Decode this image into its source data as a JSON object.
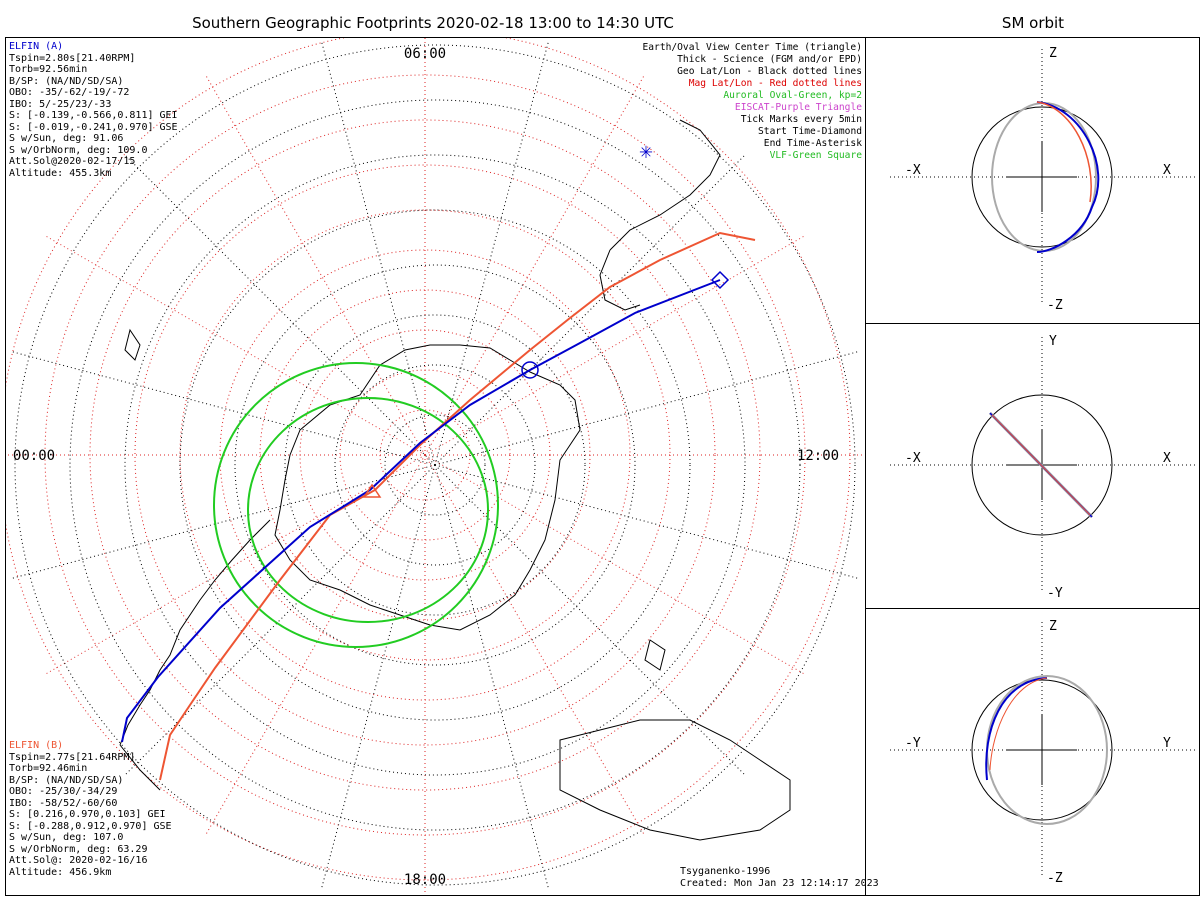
{
  "title": "Southern Geographic Footprints 2020-02-18 13:00 to 14:30 UTC",
  "side_title": "SM orbit",
  "mlt_labels": {
    "top": "06:00",
    "left": "00:00",
    "right": "12:00",
    "bottom": "18:00"
  },
  "elfin_a": {
    "name": "ELFIN (A)",
    "lines": [
      "Tspin=2.80s[21.40RPM]",
      "Torb=92.56min",
      "B/SP: (NA/ND/SD/SA)",
      "OBO: -35/-62/-19/-72",
      "IBO: 5/-25/23/-33",
      "S: [-0.139,-0.566,0.811] GEI",
      "S: [-0.019,-0.241,0.970] GSE",
      "S w/Sun, deg: 91.06",
      "S w/OrbNorm, deg: 109.0",
      "Att.Sol@2020-02-17/15",
      "Altitude: 455.3km"
    ],
    "color": "#0000cc"
  },
  "elfin_b": {
    "name": "ELFIN (B)",
    "lines": [
      "Tspin=2.77s[21.64RPM]",
      "Torb=92.46min",
      "B/SP: (NA/ND/SD/SA)",
      "OBO: -25/30/-34/29",
      "IBO: -58/52/-60/60",
      "S: [0.216,0.970,0.103] GEI",
      "S: [-0.288,0.912,0.970] GSE",
      "S w/Sun, deg: 107.0",
      "S w/OrbNorm, deg: 63.29",
      "Att.Sol@: 2020-02-16/16",
      "Altitude: 456.9km"
    ],
    "color": "#ee5533"
  },
  "legend": [
    {
      "text": "Earth/Oval View Center Time (triangle)",
      "color": "#000000"
    },
    {
      "text": "Thick - Science (FGM and/or EPD)",
      "color": "#000000"
    },
    {
      "text": "Geo Lat/Lon - Black dotted lines",
      "color": "#000000"
    },
    {
      "text": "Mag Lat/Lon - Red dotted lines",
      "color": "#dd0000"
    },
    {
      "text": "Auroral Oval-Green, kp=2",
      "color": "#22bb22"
    },
    {
      "text": "EISCAT-Purple Triangle",
      "color": "#cc44cc"
    },
    {
      "text": "Tick Marks every 5min",
      "color": "#000000"
    },
    {
      "text": "Start Time-Diamond",
      "color": "#000000"
    },
    {
      "text": "End Time-Asterisk",
      "color": "#000000"
    },
    {
      "text": "VLF-Green Square",
      "color": "#22bb22"
    }
  ],
  "credit": {
    "model": "Tsyganenko-1996",
    "created": "Created: Mon Jan 23 12:14:17 2023"
  },
  "panels": [
    {
      "top": "Z",
      "bottom": "-Z",
      "left": "-X",
      "right": "X"
    },
    {
      "top": "Y",
      "bottom": "-Y",
      "left": "-X",
      "right": "X"
    },
    {
      "top": "Z",
      "bottom": "-Z",
      "left": "-Y",
      "right": "Y"
    }
  ]
}
